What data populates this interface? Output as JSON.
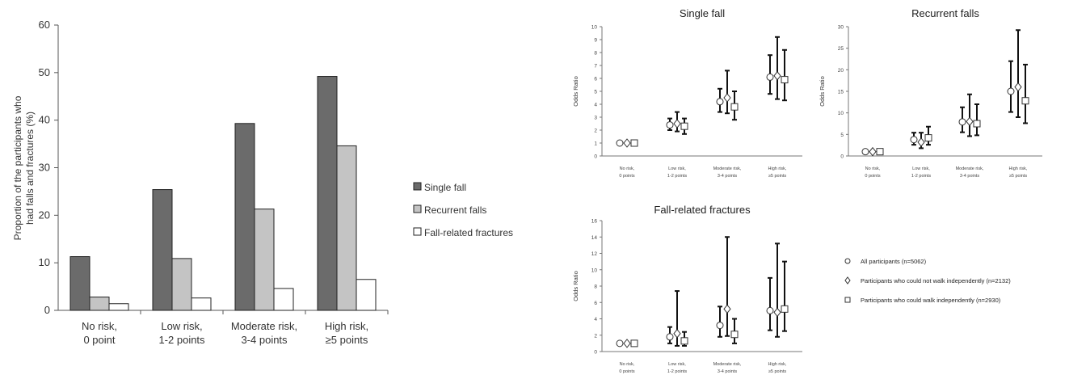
{
  "chart_data": [
    {
      "type": "bar",
      "title": "",
      "xlabel": "",
      "ylabel": "Proportion of the participants who had falls and fractures (%)",
      "ylabel_lines": [
        "Proportion of the participants who",
        "had falls and fractures (%)"
      ],
      "ylim": [
        0,
        60
      ],
      "yticks": [
        0,
        10,
        20,
        30,
        40,
        50,
        60
      ],
      "grid": false,
      "legend": "right",
      "categories": [
        "No risk, 0 point",
        "Low risk, 1-2 points",
        "Moderate risk, 3-4 points",
        "High risk, ≥5 points"
      ],
      "category_lines": [
        [
          "No risk,",
          "0 point"
        ],
        [
          "Low risk,",
          "1-2 points"
        ],
        [
          "Moderate risk,",
          "3-4 points"
        ],
        [
          "High risk,",
          "≥5 points"
        ]
      ],
      "series": [
        {
          "name": "Single fall",
          "color": "#6b6b6b",
          "values": [
            11.3,
            25.4,
            39.3,
            49.2
          ]
        },
        {
          "name": "Recurrent falls",
          "color": "#c4c4c4",
          "values": [
            2.8,
            10.9,
            21.3,
            34.6
          ]
        },
        {
          "name": "Fall-related fractures",
          "color": "#ffffff",
          "values": [
            1.4,
            2.6,
            4.6,
            6.5
          ]
        }
      ]
    },
    {
      "type": "scatter",
      "title": "Single fall",
      "ylabel": "Odds Ratio",
      "ylim": [
        0,
        10
      ],
      "yticks": [
        0,
        1,
        2,
        3,
        4,
        5,
        6,
        7,
        8,
        9,
        10
      ],
      "category_lines": [
        [
          "No risk,",
          "0 points"
        ],
        [
          "Low risk,",
          "1-2 points"
        ],
        [
          "Moderate risk,",
          "3-4 points"
        ],
        [
          "High risk,",
          "≥5 points"
        ]
      ],
      "series": [
        {
          "name": "All participants (n=5062)",
          "marker": "circle",
          "values": [
            1,
            2.4,
            4.2,
            6.1
          ],
          "lower": [
            1,
            2.0,
            3.4,
            4.8
          ],
          "upper": [
            1,
            2.9,
            5.2,
            7.8
          ]
        },
        {
          "name": "Participants who could not walk independently (n=2132)",
          "marker": "diamond",
          "values": [
            1,
            2.5,
            4.5,
            6.2
          ],
          "lower": [
            1,
            1.9,
            3.3,
            4.4
          ],
          "upper": [
            1,
            3.4,
            6.6,
            9.2
          ]
        },
        {
          "name": "Participants who could walk independently (n=2930)",
          "marker": "square",
          "values": [
            1,
            2.3,
            3.8,
            5.9
          ],
          "lower": [
            1,
            1.7,
            2.8,
            4.3
          ],
          "upper": [
            1,
            2.9,
            5.0,
            8.2
          ]
        }
      ]
    },
    {
      "type": "scatter",
      "title": "Recurrent falls",
      "ylabel": "Odds Ratio",
      "ylim": [
        0,
        30
      ],
      "yticks": [
        0,
        5,
        10,
        15,
        20,
        25,
        30
      ],
      "category_lines": [
        [
          "No risk,",
          "0 points"
        ],
        [
          "Low risk,",
          "1-2 points"
        ],
        [
          "Moderate risk,",
          "3-4 points"
        ],
        [
          "High risk,",
          "≥5 points"
        ]
      ],
      "series": [
        {
          "name": "All participants (n=5062)",
          "marker": "circle",
          "values": [
            1,
            3.8,
            7.9,
            15.0
          ],
          "lower": [
            1,
            2.6,
            5.5,
            10.2
          ],
          "upper": [
            1,
            5.4,
            11.3,
            22.0
          ]
        },
        {
          "name": "Participants who could not walk independently (n=2132)",
          "marker": "diamond",
          "values": [
            1,
            3.2,
            8.0,
            16.0
          ],
          "lower": [
            1,
            1.8,
            4.6,
            9.0
          ],
          "upper": [
            1,
            5.4,
            14.3,
            29.2
          ]
        },
        {
          "name": "Participants who could walk independently (n=2930)",
          "marker": "square",
          "values": [
            1,
            4.2,
            7.5,
            12.8
          ],
          "lower": [
            1,
            2.6,
            4.8,
            7.6
          ],
          "upper": [
            1,
            6.8,
            12.0,
            21.2
          ]
        }
      ]
    },
    {
      "type": "scatter",
      "title": "Fall-related fractures",
      "ylabel": "Odds Ratio",
      "ylim": [
        0,
        16
      ],
      "yticks": [
        0,
        2,
        4,
        6,
        8,
        10,
        12,
        14,
        16
      ],
      "category_lines": [
        [
          "No risk,",
          "0 points"
        ],
        [
          "Low risk,",
          "1-2 points"
        ],
        [
          "Moderate risk,",
          "3-4 points"
        ],
        [
          "High risk,",
          "≥5 points"
        ]
      ],
      "series": [
        {
          "name": "All participants (n=5062)",
          "marker": "circle",
          "values": [
            1,
            1.8,
            3.2,
            5.0
          ],
          "lower": [
            1,
            1.0,
            1.8,
            2.6
          ],
          "upper": [
            1,
            3.0,
            5.5,
            9.0
          ]
        },
        {
          "name": "Participants who could not walk independently (n=2132)",
          "marker": "diamond",
          "values": [
            1,
            2.2,
            5.2,
            4.8
          ],
          "lower": [
            1,
            0.7,
            1.9,
            1.8
          ],
          "upper": [
            1,
            7.4,
            14.0,
            13.2
          ]
        },
        {
          "name": "Participants who could walk independently (n=2930)",
          "marker": "square",
          "values": [
            1,
            1.3,
            2.1,
            5.2
          ],
          "lower": [
            1,
            0.7,
            1.0,
            2.5
          ],
          "upper": [
            1,
            2.4,
            4.0,
            11.0
          ]
        }
      ]
    }
  ],
  "or_legend": [
    {
      "marker": "circle",
      "label": "All participants (n=5062)"
    },
    {
      "marker": "diamond",
      "label": "Participants who could not walk independently (n=2132)"
    },
    {
      "marker": "square",
      "label": "Participants who could walk independently (n=2930)"
    }
  ]
}
